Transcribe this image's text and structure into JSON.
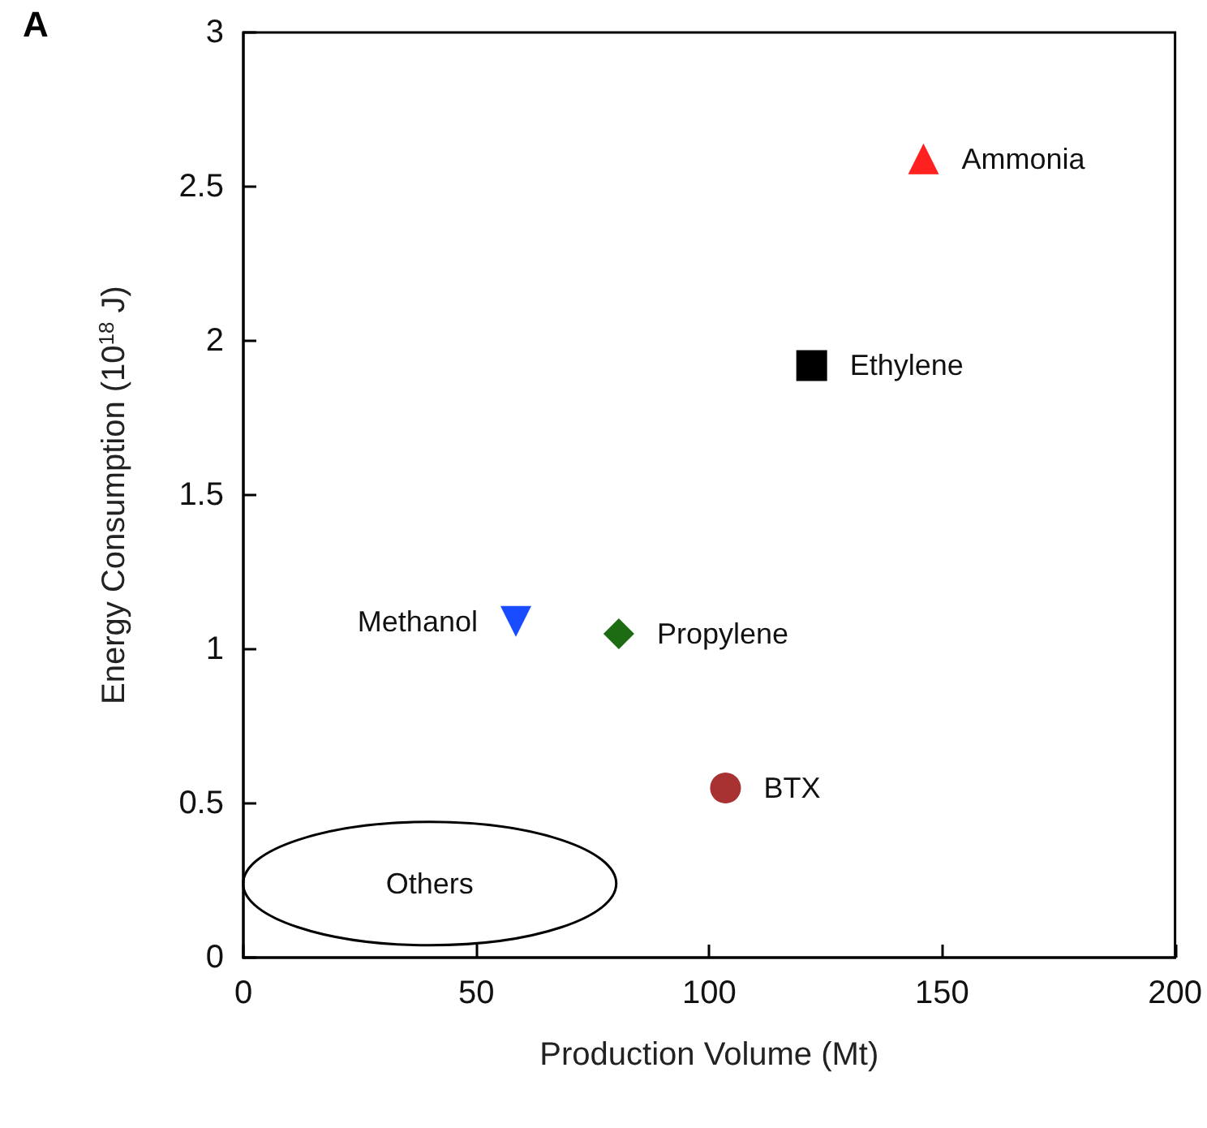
{
  "chart_data": {
    "type": "scatter",
    "xlabel": "Production Volume (Mt)",
    "ylabel": "Energy Consumption (10$^{18}$ J)",
    "xlim": [
      0,
      200
    ],
    "xticks": [
      0,
      50,
      100,
      150,
      200
    ],
    "ylim": [
      0,
      3
    ],
    "yticks": [
      0,
      0.5,
      1,
      1.5,
      2,
      2.5,
      3
    ],
    "grid": false,
    "legend": false,
    "annotations": [
      "A",
      "Others"
    ],
    "series": [
      {
        "name": "Ammonia",
        "color": "#ff2020",
        "marker": "triangle",
        "x": [
          146
        ],
        "values": [
          2.59
        ]
      },
      {
        "name": "Ethylene",
        "color": "#000000",
        "marker": "square",
        "x": [
          122
        ],
        "values": [
          1.92
        ]
      },
      {
        "name": "Methanol",
        "color": "#1a4cff",
        "marker": "triangle_down",
        "x": [
          58.5
        ],
        "values": [
          1.09
        ]
      },
      {
        "name": "Propylene",
        "color": "#1d6b12",
        "marker": "diamond",
        "x": [
          80.6
        ],
        "values": [
          1.05
        ]
      },
      {
        "name": "BTX",
        "color": "#a83232",
        "marker": "circle",
        "x": [
          103.5
        ],
        "values": [
          0.55
        ]
      }
    ]
  }
}
